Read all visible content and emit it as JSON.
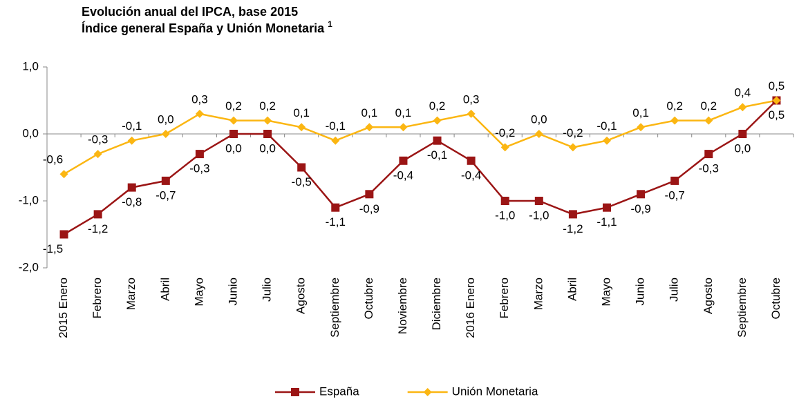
{
  "chart_data": {
    "type": "line",
    "title": "Evolución anual del IPCA, base 2015",
    "subtitle": "Índice general España y Unión Monetaria",
    "footnote_ref": "1",
    "categories": [
      "2015 Enero",
      "Febrero",
      "Marzo",
      "Abril",
      "Mayo",
      "Junio",
      "Julio",
      "Agosto",
      "Septiembre",
      "Octubre",
      "Noviembre",
      "Diciembre",
      "2016 Enero",
      "Febrero",
      "Marzo",
      "Abril",
      "Mayo",
      "Junio",
      "Julio",
      "Agosto",
      "Septiembre",
      "Octubre"
    ],
    "series": [
      {
        "name": "España",
        "color": "#9b1515",
        "marker": "square",
        "values": [
          -1.5,
          -1.2,
          -0.8,
          -0.7,
          -0.3,
          0.0,
          0.0,
          -0.5,
          -1.1,
          -0.9,
          -0.4,
          -0.1,
          -0.4,
          -1.0,
          -1.0,
          -1.2,
          -1.1,
          -0.9,
          -0.7,
          -0.3,
          0.0,
          0.5
        ],
        "value_labels": [
          "-1,5",
          "-1,2",
          "-0,8",
          "-0,7",
          "-0,3",
          "0,0",
          "0,0",
          "-0,5",
          "-1,1",
          "-0,9",
          "-0,4",
          "-0,1",
          "-0,4",
          "-1,0",
          "-1,0",
          "-1,2",
          "-1,1",
          "-0,9",
          "-0,7",
          "-0,3",
          "0,0",
          "0,5"
        ]
      },
      {
        "name": "Unión Monetaria",
        "color": "#fbb612",
        "marker": "diamond",
        "values": [
          -0.6,
          -0.3,
          -0.1,
          0.0,
          0.3,
          0.2,
          0.2,
          0.1,
          -0.1,
          0.1,
          0.1,
          0.2,
          0.3,
          -0.2,
          0.0,
          -0.2,
          -0.1,
          0.1,
          0.2,
          0.2,
          0.4,
          0.5
        ],
        "value_labels": [
          "-0,6",
          "-0,3",
          "-0,1",
          "0,0",
          "0,3",
          "0,2",
          "0,2",
          "0,1",
          "-0,1",
          "0,1",
          "0,1",
          "0,2",
          "0,3",
          "-0,2",
          "0,0",
          "-0,2",
          "-0,1",
          "0,1",
          "0,2",
          "0,2",
          "0,4",
          "0,5"
        ]
      }
    ],
    "ylim": [
      -2,
      1
    ],
    "yticks": [
      {
        "value": -2,
        "label": "-2,0"
      },
      {
        "value": -1,
        "label": "-1,0"
      },
      {
        "value": 0,
        "label": "0,0"
      },
      {
        "value": 1,
        "label": "1,0"
      }
    ],
    "grid": false,
    "legend": "bottom"
  }
}
